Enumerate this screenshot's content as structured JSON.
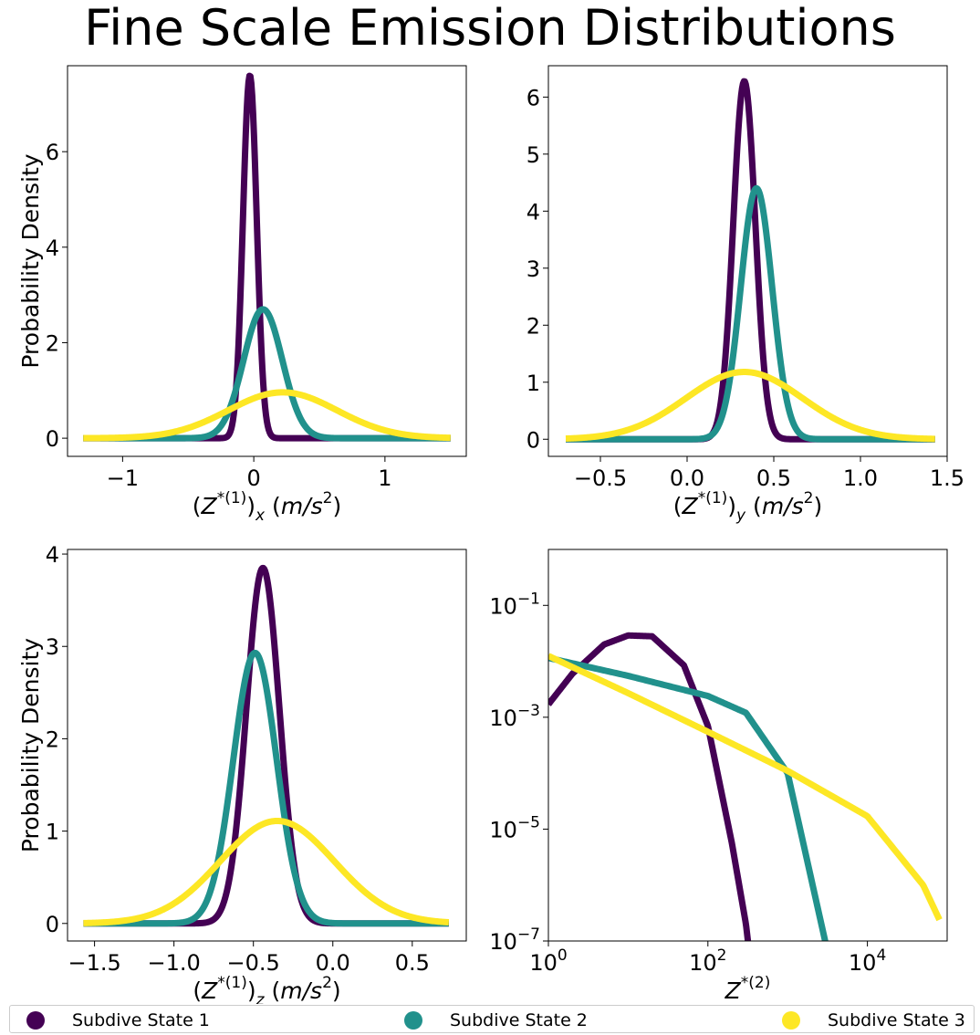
{
  "figure_title": "Fine Scale Emission Distributions",
  "legend": {
    "items": [
      {
        "label": "Subdive State 1",
        "color": "#440154"
      },
      {
        "label": "Subdive State 2",
        "color": "#21918c"
      },
      {
        "label": "Subdive State 3",
        "color": "#fde725"
      }
    ]
  },
  "chart_data": [
    {
      "type": "line",
      "title": "",
      "xlabel": "(Z*(1))x (m/s2)",
      "ylabel": "Probability Density",
      "xlim": [
        -1.42,
        1.62
      ],
      "ylim": [
        -0.38,
        7.8
      ],
      "x_range": [
        -1.3,
        1.5
      ],
      "xticks": [
        -1,
        0,
        1
      ],
      "xtick_labels": [
        "−1",
        "0",
        "1"
      ],
      "yticks": [
        0,
        2,
        4,
        6
      ],
      "ytick_labels": [
        "0",
        "2",
        "4",
        "6"
      ],
      "series": [
        {
          "color": "#440154",
          "shape": "gaussian",
          "mean": -0.03,
          "peak": 7.6
        },
        {
          "color": "#21918c",
          "shape": "gaussian",
          "mean": 0.07,
          "peak": 2.7
        },
        {
          "color": "#fde725",
          "shape": "gaussian",
          "mean": 0.22,
          "peak": 0.96
        }
      ]
    },
    {
      "type": "line",
      "title": "",
      "xlabel": "(Z*(1))y (m/s2)",
      "ylabel": "",
      "xlim": [
        -0.8,
        1.5
      ],
      "ylim": [
        -0.3,
        6.55
      ],
      "x_range": [
        -0.7,
        1.43
      ],
      "xticks": [
        -0.5,
        0.0,
        0.5,
        1.0,
        1.5
      ],
      "xtick_labels": [
        "−0.5",
        "0.0",
        "0.5",
        "1.0",
        "1.5"
      ],
      "yticks": [
        0,
        1,
        2,
        3,
        4,
        5,
        6
      ],
      "ytick_labels": [
        "0",
        "1",
        "2",
        "3",
        "4",
        "5",
        "6"
      ],
      "series": [
        {
          "color": "#440154",
          "shape": "gaussian",
          "mean": 0.33,
          "peak": 6.28
        },
        {
          "color": "#21918c",
          "shape": "gaussian",
          "mean": 0.4,
          "peak": 4.4
        },
        {
          "color": "#fde725",
          "shape": "gaussian",
          "mean": 0.33,
          "peak": 1.18
        }
      ]
    },
    {
      "type": "line",
      "title": "",
      "xlabel": "(Z*(1))z (m/s2)",
      "ylabel": "Probability Density",
      "xlim": [
        -1.67,
        0.84
      ],
      "ylim": [
        -0.19,
        4.05
      ],
      "x_range": [
        -1.57,
        0.73
      ],
      "xticks": [
        -1.5,
        -1.0,
        -0.5,
        0.0,
        0.5
      ],
      "xtick_labels": [
        "−1.5",
        "−1.0",
        "−0.5",
        "0.0",
        "0.5"
      ],
      "yticks": [
        0,
        1,
        2,
        3,
        4
      ],
      "ytick_labels": [
        "0",
        "1",
        "2",
        "3",
        "4"
      ],
      "series": [
        {
          "color": "#440154",
          "shape": "gaussian",
          "mean": -0.44,
          "peak": 3.85
        },
        {
          "color": "#21918c",
          "shape": "gaussian",
          "mean": -0.49,
          "peak": 2.93
        },
        {
          "color": "#fde725",
          "shape": "gaussian",
          "mean": -0.35,
          "peak": 1.11
        }
      ]
    },
    {
      "type": "line",
      "title": "",
      "xlabel": "Z*(2)",
      "ylabel": "",
      "xscale": "log",
      "yscale": "log",
      "xlim": [
        1,
        100000
      ],
      "ylim": [
        1e-07,
        1
      ],
      "xticks": [
        1,
        100,
        10000
      ],
      "xtick_labels": [
        [
          "10",
          "0"
        ],
        [
          "10",
          "2"
        ],
        [
          "10",
          "4"
        ]
      ],
      "yticks": [
        1e-07,
        1e-05,
        0.001,
        0.1
      ],
      "ytick_labels": [
        [
          "10",
          "−7"
        ],
        [
          "10",
          "−5"
        ],
        [
          "10",
          "−3"
        ],
        [
          "10",
          "−1"
        ]
      ],
      "series": [
        {
          "color": "#440154",
          "x": [
            1,
            2,
            5,
            10,
            20,
            50,
            100,
            200,
            300,
            400
          ],
          "y": [
            0.0017,
            0.006,
            0.02,
            0.029,
            0.028,
            0.0085,
            0.0007,
            5.6e-06,
            2e-07,
            6e-09
          ]
        },
        {
          "color": "#21918c",
          "x": [
            1,
            10,
            100,
            300,
            1000,
            3000,
            4000
          ],
          "y": [
            0.0115,
            0.0055,
            0.0024,
            0.0012,
            0.0001,
            9e-08,
            1e-08
          ]
        },
        {
          "color": "#fde725",
          "x": [
            1,
            10,
            100,
            1000,
            10000,
            50000,
            80000
          ],
          "y": [
            0.0125,
            0.0027,
            0.00055,
            0.00011,
            1.7e-05,
            1e-06,
            2.4e-07
          ]
        }
      ]
    }
  ]
}
